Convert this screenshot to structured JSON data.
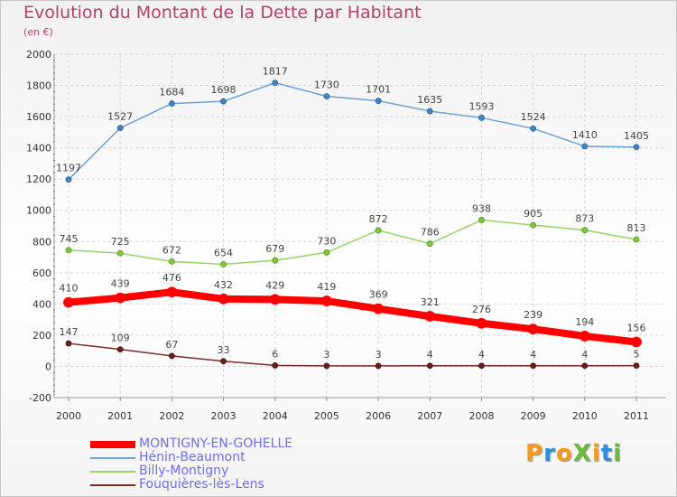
{
  "title": "Evolution du Montant de la Dette par Habitant",
  "subtitle": "(en €)",
  "logo": {
    "text": "ProXiti",
    "colors": [
      "#f39a1f",
      "#2f8fd8",
      "#f39a1f",
      "#6fb83a",
      "#f39a1f",
      "#2f8fd8",
      "#6fb83a"
    ]
  },
  "chart_data": {
    "type": "line",
    "x": [
      "2000",
      "2001",
      "2002",
      "2003",
      "2004",
      "2005",
      "2006",
      "2007",
      "2008",
      "2009",
      "2010",
      "2011"
    ],
    "ylim": [
      -200,
      2000
    ],
    "yticks": [
      "-200",
      "0",
      "200",
      "400",
      "600",
      "800",
      "1000",
      "1200",
      "1400",
      "1600",
      "1800",
      "2000"
    ],
    "grid": true,
    "legend_position": "bottom-left",
    "series": [
      {
        "name": "MONTIGNY-EN-GOHELLE",
        "color": "#ff0000",
        "values": [
          410,
          439,
          476,
          432,
          429,
          419,
          369,
          321,
          276,
          239,
          194,
          156
        ],
        "labels": [
          "410",
          "439",
          "476",
          "432",
          "429",
          "419",
          "369",
          "321",
          "276",
          "239",
          "194",
          "156"
        ]
      },
      {
        "name": "Hénin-Beaumont",
        "color": "#6fa1d4",
        "values": [
          1197,
          1527,
          1684,
          1698,
          1817,
          1730,
          1701,
          1635,
          1593,
          1524,
          1410,
          1405
        ],
        "labels": [
          "1197",
          "1527",
          "1684",
          "1698",
          "1817",
          "1730",
          "1701",
          "1635",
          "1593",
          "1524",
          "1410",
          "1405"
        ]
      },
      {
        "name": "Billy-Montigny",
        "color": "#95d463",
        "values": [
          745,
          725,
          672,
          654,
          679,
          730,
          872,
          786,
          938,
          905,
          873,
          813
        ],
        "labels": [
          "745",
          "725",
          "672",
          "654",
          "679",
          "730",
          "872",
          "786",
          "938",
          "905",
          "873",
          "813"
        ]
      },
      {
        "name": "Fouquières-lès-Lens",
        "color": "#7a2a2a",
        "values": [
          147,
          109,
          67,
          33,
          6,
          3,
          3,
          4,
          4,
          4,
          4,
          5
        ],
        "labels": [
          "147",
          "109",
          "67",
          "33",
          "6",
          "3",
          "3",
          "4",
          "4",
          "4",
          "4",
          "5"
        ]
      }
    ]
  }
}
